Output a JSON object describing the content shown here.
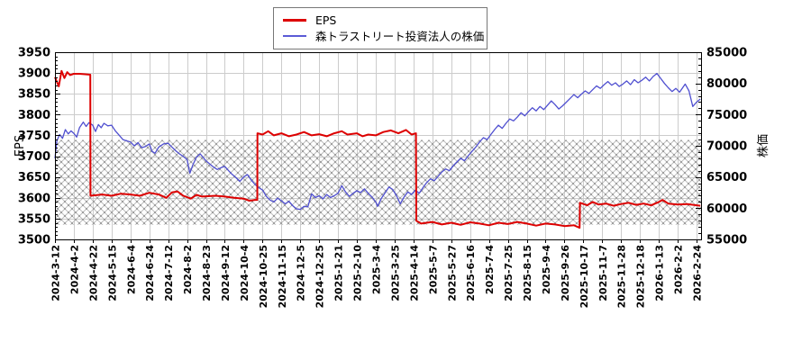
{
  "legend": {
    "items": [
      {
        "label": "EPS",
        "color": "#dd0000"
      },
      {
        "label": "森トラストリート投資法人の株価",
        "color": "#5b5bd6"
      }
    ]
  },
  "axes": {
    "left_label": "EPS",
    "right_label": "株価"
  },
  "style": {
    "grid_color": "#cccccc",
    "frame_color": "#000000",
    "hatch_line_color": "#bdbdbd",
    "hatch_dot_color": "#9e9e9e",
    "eps_color": "#dd0000",
    "price_color": "#4f4fd0"
  },
  "chart_data": {
    "type": "line",
    "title": "",
    "legend_entries": [
      "EPS",
      "森トラストリート投資法人の株価"
    ],
    "left_axis": {
      "label": "EPS",
      "min": 3500,
      "max": 3950,
      "step": 50,
      "ticks": [
        3500,
        3550,
        3600,
        3650,
        3700,
        3750,
        3800,
        3850,
        3900,
        3950
      ],
      "minor_step": 10
    },
    "right_axis": {
      "label": "株価",
      "min": 55000,
      "max": 85000,
      "step": 5000,
      "ticks": [
        55000,
        60000,
        65000,
        70000,
        75000,
        80000,
        85000
      ],
      "minor_step": 1000
    },
    "x_ticks": [
      "2024-3-12",
      "2024-4-2",
      "2024-4-22",
      "2024-5-15",
      "2024-6-4",
      "2024-6-24",
      "2024-7-12",
      "2024-8-2",
      "2024-8-23",
      "2024-9-12",
      "2024-10-4",
      "2024-10-25",
      "2024-11-15",
      "2024-12-5",
      "2024-12-25",
      "2025-1-21",
      "2025-2-10",
      "2025-3-4",
      "2025-3-25",
      "2025-4-14",
      "2025-5-7",
      "2025-5-27",
      "2025-6-16",
      "2025-7-4",
      "2025-7-25",
      "2025-8-15",
      "2025-9-4",
      "2025-9-26",
      "2025-10-17",
      "2025-11-7",
      "2025-11-28",
      "2025-12-18",
      "2026-1-13",
      "2026-2-2",
      "2026-2-24"
    ],
    "grid": true,
    "legend_position": "top-center",
    "hatch_band": {
      "axis": "left",
      "from": 3535,
      "to": 3739
    },
    "series": [
      {
        "name": "森トラストリート投資法人の株価",
        "axis": "right",
        "color": "#4f4fd0",
        "width": 1.3,
        "points": [
          [
            0,
            68000
          ],
          [
            0.1,
            70800
          ],
          [
            0.25,
            71800
          ],
          [
            0.4,
            71200
          ],
          [
            0.55,
            72600
          ],
          [
            0.7,
            71900
          ],
          [
            0.85,
            72400
          ],
          [
            1,
            72000
          ],
          [
            1.15,
            71400
          ],
          [
            1.3,
            72900
          ],
          [
            1.5,
            73800
          ],
          [
            1.65,
            73100
          ],
          [
            1.8,
            73700
          ],
          [
            2,
            73300
          ],
          [
            2.15,
            72300
          ],
          [
            2.3,
            73400
          ],
          [
            2.45,
            72900
          ],
          [
            2.6,
            73600
          ],
          [
            2.8,
            73200
          ],
          [
            3,
            73300
          ],
          [
            3.2,
            72400
          ],
          [
            3.4,
            71700
          ],
          [
            3.6,
            71000
          ],
          [
            3.8,
            70800
          ],
          [
            4,
            70600
          ],
          [
            4.2,
            70000
          ],
          [
            4.4,
            70500
          ],
          [
            4.6,
            69700
          ],
          [
            4.8,
            69900
          ],
          [
            5,
            70300
          ],
          [
            5.15,
            69100
          ],
          [
            5.3,
            68800
          ],
          [
            5.5,
            69800
          ],
          [
            5.75,
            70300
          ],
          [
            6,
            70400
          ],
          [
            6.2,
            69800
          ],
          [
            6.4,
            69200
          ],
          [
            6.6,
            68700
          ],
          [
            6.8,
            68300
          ],
          [
            7,
            67800
          ],
          [
            7.15,
            65600
          ],
          [
            7.3,
            66900
          ],
          [
            7.5,
            68200
          ],
          [
            7.7,
            68700
          ],
          [
            8,
            67600
          ],
          [
            8.2,
            67100
          ],
          [
            8.4,
            66600
          ],
          [
            8.6,
            66200
          ],
          [
            8.8,
            66500
          ],
          [
            9,
            66700
          ],
          [
            9.2,
            66000
          ],
          [
            9.4,
            65400
          ],
          [
            9.6,
            64900
          ],
          [
            9.8,
            64300
          ],
          [
            10,
            65000
          ],
          [
            10.2,
            65400
          ],
          [
            10.4,
            64500
          ],
          [
            10.6,
            63800
          ],
          [
            10.8,
            63300
          ],
          [
            11,
            62900
          ],
          [
            11.2,
            61900
          ],
          [
            11.4,
            61300
          ],
          [
            11.6,
            61000
          ],
          [
            11.8,
            61600
          ],
          [
            12,
            61200
          ],
          [
            12.2,
            60700
          ],
          [
            12.4,
            61100
          ],
          [
            12.6,
            60400
          ],
          [
            12.8,
            59900
          ],
          [
            13,
            59800
          ],
          [
            13.2,
            60300
          ],
          [
            13.4,
            60200
          ],
          [
            13.6,
            62300
          ],
          [
            13.8,
            61700
          ],
          [
            14,
            62000
          ],
          [
            14.2,
            61500
          ],
          [
            14.4,
            62200
          ],
          [
            14.6,
            61700
          ],
          [
            14.8,
            62000
          ],
          [
            15,
            62400
          ],
          [
            15.2,
            63600
          ],
          [
            15.4,
            62600
          ],
          [
            15.6,
            61900
          ],
          [
            15.8,
            62400
          ],
          [
            16,
            62800
          ],
          [
            16.2,
            62500
          ],
          [
            16.4,
            63100
          ],
          [
            16.6,
            62400
          ],
          [
            16.8,
            61800
          ],
          [
            17,
            61000
          ],
          [
            17.1,
            60300
          ],
          [
            17.3,
            61600
          ],
          [
            17.5,
            62500
          ],
          [
            17.7,
            63400
          ],
          [
            17.9,
            63000
          ],
          [
            18.1,
            62000
          ],
          [
            18.3,
            60700
          ],
          [
            18.5,
            61800
          ],
          [
            18.7,
            62600
          ],
          [
            18.9,
            62200
          ],
          [
            19.1,
            62900
          ],
          [
            19.3,
            62400
          ],
          [
            19.5,
            63300
          ],
          [
            19.7,
            64100
          ],
          [
            19.9,
            64700
          ],
          [
            20.1,
            64400
          ],
          [
            20.3,
            65100
          ],
          [
            20.5,
            65800
          ],
          [
            20.7,
            66300
          ],
          [
            20.9,
            66000
          ],
          [
            21.1,
            66800
          ],
          [
            21.3,
            67400
          ],
          [
            21.5,
            68000
          ],
          [
            21.7,
            67600
          ],
          [
            21.9,
            68400
          ],
          [
            22.1,
            69100
          ],
          [
            22.3,
            69800
          ],
          [
            22.5,
            70600
          ],
          [
            22.7,
            71300
          ],
          [
            22.9,
            71000
          ],
          [
            23.1,
            71800
          ],
          [
            23.3,
            72600
          ],
          [
            23.5,
            73300
          ],
          [
            23.7,
            72800
          ],
          [
            23.9,
            73600
          ],
          [
            24.1,
            74300
          ],
          [
            24.3,
            74000
          ],
          [
            24.5,
            74600
          ],
          [
            24.7,
            75300
          ],
          [
            24.9,
            74800
          ],
          [
            25.1,
            75500
          ],
          [
            25.3,
            76100
          ],
          [
            25.5,
            75600
          ],
          [
            25.7,
            76300
          ],
          [
            25.9,
            75800
          ],
          [
            26.1,
            76500
          ],
          [
            26.3,
            77200
          ],
          [
            26.5,
            76600
          ],
          [
            26.7,
            75900
          ],
          [
            26.9,
            76400
          ],
          [
            27.1,
            77000
          ],
          [
            27.3,
            77600
          ],
          [
            27.5,
            78200
          ],
          [
            27.7,
            77700
          ],
          [
            27.9,
            78300
          ],
          [
            28.1,
            78800
          ],
          [
            28.3,
            78400
          ],
          [
            28.5,
            79000
          ],
          [
            28.7,
            79600
          ],
          [
            28.9,
            79200
          ],
          [
            29.1,
            79800
          ],
          [
            29.3,
            80300
          ],
          [
            29.5,
            79700
          ],
          [
            29.7,
            80100
          ],
          [
            29.9,
            79500
          ],
          [
            30.1,
            79900
          ],
          [
            30.3,
            80400
          ],
          [
            30.5,
            79800
          ],
          [
            30.7,
            80600
          ],
          [
            30.9,
            80100
          ],
          [
            31.1,
            80500
          ],
          [
            31.3,
            81000
          ],
          [
            31.5,
            80400
          ],
          [
            31.7,
            81100
          ],
          [
            31.9,
            81600
          ],
          [
            32.1,
            80800
          ],
          [
            32.3,
            80000
          ],
          [
            32.5,
            79300
          ],
          [
            32.7,
            78700
          ],
          [
            32.9,
            79200
          ],
          [
            33.1,
            78600
          ],
          [
            33.4,
            79900
          ],
          [
            33.6,
            78800
          ],
          [
            33.8,
            76300
          ],
          [
            34,
            77000
          ],
          [
            34.2,
            77500
          ]
        ]
      },
      {
        "name": "EPS",
        "axis": "left",
        "color": "#dd0000",
        "width": 2,
        "points": [
          [
            0,
            3890
          ],
          [
            0.2,
            3868
          ],
          [
            0.35,
            3905
          ],
          [
            0.5,
            3888
          ],
          [
            0.65,
            3902
          ],
          [
            0.8,
            3895
          ],
          [
            1,
            3898
          ],
          [
            1.3,
            3898
          ],
          [
            1.6,
            3897
          ],
          [
            1.87,
            3896
          ],
          [
            1.88,
            3605
          ],
          [
            2.5,
            3608
          ],
          [
            3,
            3605
          ],
          [
            3.5,
            3610
          ],
          [
            4,
            3608
          ],
          [
            4.5,
            3605
          ],
          [
            5,
            3612
          ],
          [
            5.5,
            3608
          ],
          [
            5.9,
            3600
          ],
          [
            6.2,
            3613
          ],
          [
            6.5,
            3615
          ],
          [
            6.8,
            3605
          ],
          [
            7.2,
            3598
          ],
          [
            7.5,
            3607
          ],
          [
            7.8,
            3603
          ],
          [
            8.5,
            3605
          ],
          [
            9,
            3603
          ],
          [
            9.5,
            3600
          ],
          [
            10,
            3598
          ],
          [
            10.3,
            3593
          ],
          [
            10.6,
            3595
          ],
          [
            10.72,
            3595
          ],
          [
            10.73,
            3755
          ],
          [
            11,
            3752
          ],
          [
            11.3,
            3760
          ],
          [
            11.6,
            3750
          ],
          [
            12,
            3755
          ],
          [
            12.4,
            3748
          ],
          [
            12.8,
            3752
          ],
          [
            13.2,
            3758
          ],
          [
            13.6,
            3750
          ],
          [
            14,
            3753
          ],
          [
            14.4,
            3748
          ],
          [
            14.8,
            3755
          ],
          [
            15.2,
            3760
          ],
          [
            15.5,
            3752
          ],
          [
            16,
            3755
          ],
          [
            16.3,
            3748
          ],
          [
            16.6,
            3752
          ],
          [
            17,
            3750
          ],
          [
            17.4,
            3758
          ],
          [
            17.8,
            3762
          ],
          [
            18.2,
            3755
          ],
          [
            18.6,
            3763
          ],
          [
            18.9,
            3752
          ],
          [
            19.13,
            3755
          ],
          [
            19.15,
            3545
          ],
          [
            19.4,
            3538
          ],
          [
            20,
            3542
          ],
          [
            20.5,
            3536
          ],
          [
            21,
            3540
          ],
          [
            21.5,
            3535
          ],
          [
            22,
            3541
          ],
          [
            22.5,
            3538
          ],
          [
            23,
            3534
          ],
          [
            23.5,
            3540
          ],
          [
            24,
            3537
          ],
          [
            24.5,
            3542
          ],
          [
            25,
            3538
          ],
          [
            25.5,
            3533
          ],
          [
            26,
            3538
          ],
          [
            26.5,
            3536
          ],
          [
            27,
            3532
          ],
          [
            27.5,
            3534
          ],
          [
            27.8,
            3528
          ],
          [
            27.82,
            3588
          ],
          [
            28.2,
            3582
          ],
          [
            28.5,
            3590
          ],
          [
            28.8,
            3584
          ],
          [
            29.2,
            3586
          ],
          [
            29.6,
            3581
          ],
          [
            30,
            3585
          ],
          [
            30.4,
            3588
          ],
          [
            30.8,
            3583
          ],
          [
            31.2,
            3586
          ],
          [
            31.6,
            3582
          ],
          [
            32,
            3590
          ],
          [
            32.2,
            3595
          ],
          [
            32.5,
            3586
          ],
          [
            33,
            3584
          ],
          [
            33.5,
            3585
          ],
          [
            34.2,
            3581
          ]
        ]
      }
    ]
  }
}
